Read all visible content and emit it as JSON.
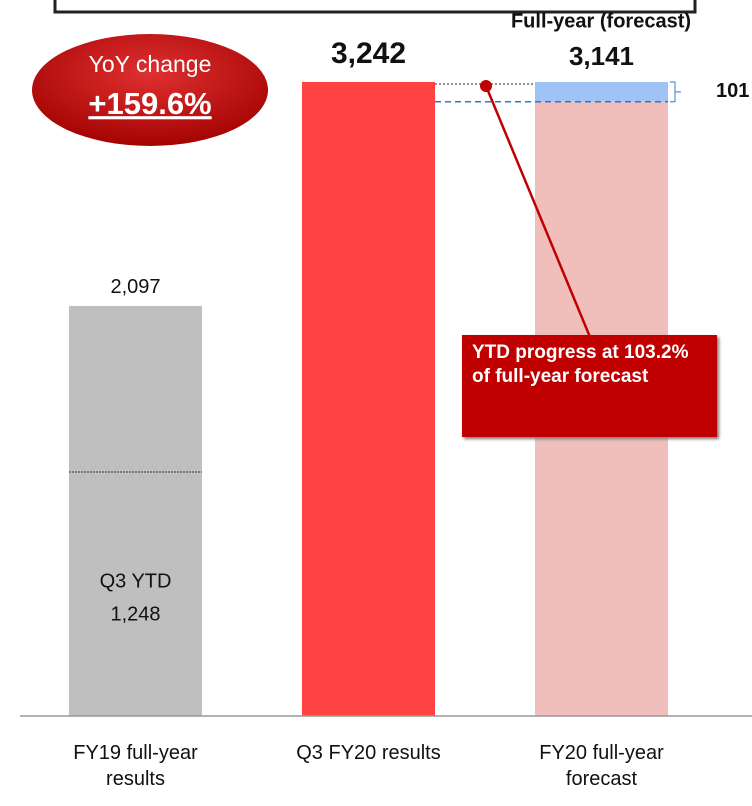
{
  "chart_data": {
    "type": "bar",
    "categories": [
      "FY19 full-year results",
      "Q3 FY20 results",
      "FY20 full-year forecast"
    ],
    "values": [
      2097,
      3242,
      3141
    ],
    "value_labels": [
      "2,097",
      "3,242",
      "3,141"
    ],
    "colors": [
      "#bfbfbf",
      "#ff4343",
      "#f0bfbb"
    ],
    "ytd": {
      "label": "Q3 YTD",
      "value": 1248,
      "value_label": "1,248"
    },
    "difference": {
      "value": 101,
      "label": "101",
      "color": "#9fc3f5"
    },
    "forecast_header": "Full-year (forecast)",
    "yoy": {
      "label": "YoY change",
      "value": "+159.6%"
    },
    "callout": "YTD progress at 103.2% of full-year forecast"
  }
}
